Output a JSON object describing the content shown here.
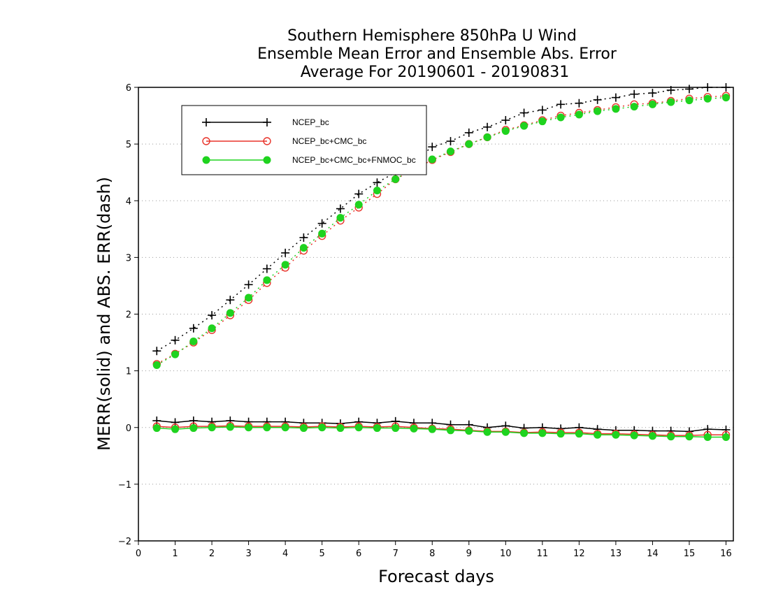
{
  "chart_data": {
    "type": "line",
    "title": [
      "Southern Hemisphere 850hPa U Wind",
      "Ensemble Mean Error and Ensemble Abs. Error",
      "Average For 20190601 - 20190831"
    ],
    "xlabel": "Forecast days",
    "ylabel": "MERR(solid) and ABS. ERR(dash)",
    "xlim": [
      0,
      16.2
    ],
    "ylim": [
      -2,
      6
    ],
    "xticks": [
      0,
      1,
      2,
      3,
      4,
      5,
      6,
      7,
      8,
      9,
      10,
      11,
      12,
      13,
      14,
      15,
      16
    ],
    "yticks": [
      -2,
      -1,
      0,
      1,
      2,
      3,
      4,
      5,
      6
    ],
    "ytick_labels": [
      "−2",
      "−1",
      "0",
      "1",
      "2",
      "3",
      "4",
      "5",
      "6"
    ],
    "grid": "horizontal dotted",
    "legend_position": "top-left",
    "x": [
      0.5,
      1,
      1.5,
      2,
      2.5,
      3,
      3.5,
      4,
      4.5,
      5,
      5.5,
      6,
      6.5,
      7,
      7.5,
      8,
      8.5,
      9,
      9.5,
      10,
      10.5,
      11,
      11.5,
      12,
      12.5,
      13,
      13.5,
      14,
      14.5,
      15,
      15.5,
      16
    ],
    "series": [
      {
        "name": "NCEP_bc",
        "color": "#000000",
        "marker": "plus",
        "merr": [
          0.12,
          0.09,
          0.12,
          0.1,
          0.12,
          0.1,
          0.1,
          0.1,
          0.08,
          0.08,
          0.07,
          0.1,
          0.08,
          0.11,
          0.08,
          0.08,
          0.05,
          0.05,
          0.0,
          0.03,
          -0.01,
          0.0,
          -0.02,
          0.0,
          -0.03,
          -0.05,
          -0.05,
          -0.06,
          -0.06,
          -0.07,
          -0.03,
          -0.04
        ],
        "abs_err": [
          1.35,
          1.54,
          1.75,
          1.98,
          2.25,
          2.52,
          2.8,
          3.08,
          3.35,
          3.6,
          3.86,
          4.12,
          4.32,
          4.5,
          4.7,
          4.95,
          5.05,
          5.2,
          5.3,
          5.42,
          5.55,
          5.6,
          5.7,
          5.72,
          5.78,
          5.82,
          5.88,
          5.9,
          5.95,
          5.97,
          6.0,
          6.0
        ]
      },
      {
        "name": "NCEP_bc+CMC_bc",
        "color": "#e8332a",
        "marker": "open-circle",
        "merr": [
          0.02,
          0.0,
          0.02,
          0.02,
          0.03,
          0.02,
          0.02,
          0.02,
          0.01,
          0.02,
          0.01,
          0.02,
          0.01,
          0.02,
          0.0,
          -0.02,
          -0.03,
          -0.05,
          -0.07,
          -0.07,
          -0.09,
          -0.08,
          -0.09,
          -0.09,
          -0.11,
          -0.11,
          -0.12,
          -0.13,
          -0.14,
          -0.14,
          -0.13,
          -0.13
        ],
        "abs_err": [
          1.12,
          1.3,
          1.5,
          1.72,
          1.98,
          2.25,
          2.55,
          2.82,
          3.12,
          3.38,
          3.65,
          3.88,
          4.12,
          4.38,
          4.55,
          4.72,
          4.86,
          5.0,
          5.12,
          5.25,
          5.33,
          5.42,
          5.5,
          5.55,
          5.6,
          5.65,
          5.7,
          5.72,
          5.76,
          5.8,
          5.83,
          5.85
        ]
      },
      {
        "name": "NCEP_bc+CMC_bc+FNMOC_bc",
        "color": "#1fd31f",
        "marker": "filled-circle",
        "merr": [
          -0.01,
          -0.03,
          -0.01,
          0.0,
          0.01,
          0.0,
          0.0,
          0.0,
          -0.01,
          0.0,
          -0.01,
          0.0,
          -0.01,
          -0.01,
          -0.02,
          -0.03,
          -0.05,
          -0.06,
          -0.08,
          -0.08,
          -0.1,
          -0.1,
          -0.11,
          -0.11,
          -0.13,
          -0.13,
          -0.14,
          -0.15,
          -0.16,
          -0.16,
          -0.17,
          -0.17
        ],
        "abs_err": [
          1.1,
          1.29,
          1.52,
          1.75,
          2.02,
          2.29,
          2.6,
          2.87,
          3.17,
          3.42,
          3.7,
          3.93,
          4.18,
          4.38,
          4.57,
          4.73,
          4.87,
          5.0,
          5.12,
          5.23,
          5.32,
          5.4,
          5.47,
          5.52,
          5.58,
          5.62,
          5.66,
          5.7,
          5.74,
          5.77,
          5.8,
          5.82
        ]
      }
    ]
  }
}
